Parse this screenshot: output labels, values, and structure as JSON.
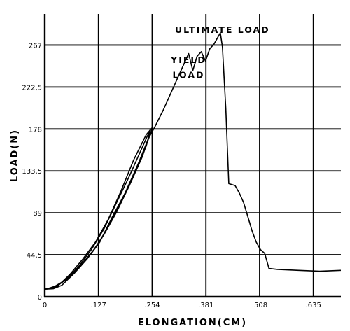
{
  "chart_data": {
    "type": "line",
    "title": "",
    "xlabel": "ELONGATION(CM)",
    "ylabel": "LOAD(N)",
    "xlim": [
      0,
      0.7
    ],
    "ylim": [
      0,
      300
    ],
    "grid": true,
    "xticks": [
      {
        "value": 0,
        "label": "0"
      },
      {
        "value": 0.127,
        "label": ".127"
      },
      {
        "value": 0.254,
        "label": ".254"
      },
      {
        "value": 0.381,
        "label": ".381"
      },
      {
        "value": 0.508,
        "label": ".508"
      },
      {
        "value": 0.635,
        "label": ".635"
      }
    ],
    "yticks": [
      {
        "value": 0,
        "label": "0"
      },
      {
        "value": 44.5,
        "label": "44,5"
      },
      {
        "value": 89,
        "label": "89"
      },
      {
        "value": 133.5,
        "label": "133,5"
      },
      {
        "value": 178,
        "label": "178"
      },
      {
        "value": 222.5,
        "label": "222,5"
      },
      {
        "value": 267,
        "label": "267"
      }
    ],
    "annotations": [
      {
        "text": "ULTIMATE LOAD",
        "x": 0.42,
        "y": 280
      },
      {
        "text": "YIELD",
        "x": 0.34,
        "y": 248
      },
      {
        "text": "LOAD",
        "x": 0.34,
        "y": 232
      }
    ],
    "series": [
      {
        "x": [
          0,
          0.02,
          0.04,
          0.07,
          0.1,
          0.13,
          0.16,
          0.19,
          0.22,
          0.245,
          0.26,
          0.28,
          0.3,
          0.32,
          0.34,
          0.35,
          0.36,
          0.37,
          0.38,
          0.39,
          0.4,
          0.41,
          0.415,
          0.42,
          0.428,
          0.435,
          0.45,
          0.46,
          0.47,
          0.48,
          0.49,
          0.5,
          0.51,
          0.52,
          0.53,
          0.55,
          0.6,
          0.65,
          0.7
        ],
        "y": [
          8,
          8.5,
          12,
          25,
          40,
          58,
          85,
          110,
          140,
          168,
          180,
          198,
          218,
          238,
          258,
          240,
          255,
          260,
          250,
          263,
          268,
          276,
          280,
          265,
          200,
          120,
          118,
          110,
          100,
          85,
          70,
          58,
          50,
          46,
          30,
          29,
          28,
          27,
          28
        ]
      },
      {
        "x": [
          0,
          0.02,
          0.05,
          0.08,
          0.11,
          0.14,
          0.17,
          0.2,
          0.23,
          0.25,
          0.24,
          0.21,
          0.18,
          0.15,
          0.12,
          0.09,
          0.06,
          0.03,
          0.01
        ],
        "y": [
          8,
          9,
          18,
          32,
          50,
          72,
          100,
          128,
          158,
          178,
          160,
          130,
          100,
          74,
          52,
          36,
          22,
          12,
          9
        ]
      },
      {
        "x": [
          0,
          0.03,
          0.06,
          0.09,
          0.12,
          0.15,
          0.18,
          0.21,
          0.24,
          0.255,
          0.23,
          0.2,
          0.17,
          0.14,
          0.11,
          0.08,
          0.05,
          0.02
        ],
        "y": [
          8,
          11,
          24,
          40,
          58,
          82,
          112,
          145,
          172,
          180,
          148,
          118,
          90,
          66,
          46,
          30,
          18,
          10
        ]
      }
    ]
  }
}
